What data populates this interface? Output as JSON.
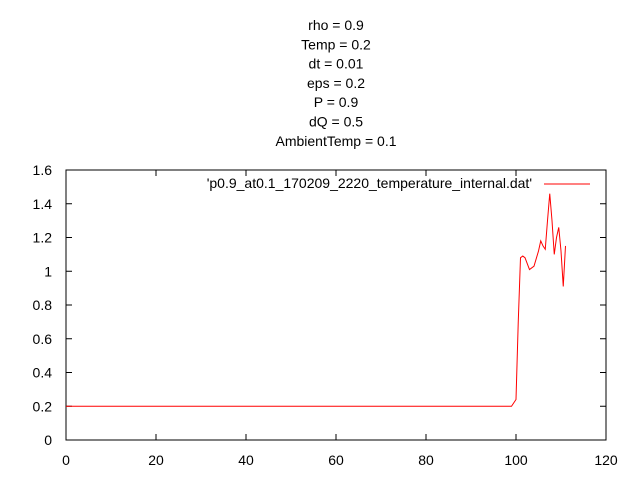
{
  "chart_data": {
    "type": "line",
    "title_lines": [
      "rho = 0.9",
      "Temp = 0.2",
      "dt = 0.01",
      "eps = 0.2",
      "P = 0.9",
      "dQ = 0.5",
      "AmbientTemp = 0.1"
    ],
    "xlim": [
      0,
      120
    ],
    "ylim": [
      0,
      1.6
    ],
    "x_ticks": [
      0,
      20,
      40,
      60,
      80,
      100,
      120
    ],
    "x_tick_labels": [
      "0",
      "20",
      "40",
      "60",
      "80",
      "100",
      "120"
    ],
    "y_ticks": [
      0,
      0.2,
      0.4,
      0.6,
      0.8,
      1.0,
      1.2,
      1.4,
      1.6
    ],
    "y_tick_labels": [
      "0",
      "0.2",
      "0.4",
      "0.6",
      "0.8",
      "1",
      "1.2",
      "1.4",
      "1.6"
    ],
    "grid": false,
    "legend_position": "top-right",
    "series": [
      {
        "name": "'p0.9_at0.1_170209_2220_temperature_internal.dat'",
        "color": "#ff0000",
        "x": [
          0,
          20,
          40,
          60,
          80,
          99,
          100,
          100.5,
          101,
          101.5,
          102,
          103,
          104,
          105,
          105.5,
          106,
          106.5,
          107,
          107.5,
          108,
          108.5,
          109,
          109.5,
          110,
          110.5,
          111
        ],
        "y": [
          0.2,
          0.2,
          0.2,
          0.2,
          0.2,
          0.2,
          0.24,
          0.7,
          1.08,
          1.09,
          1.08,
          1.01,
          1.03,
          1.12,
          1.18,
          1.15,
          1.13,
          1.3,
          1.46,
          1.3,
          1.1,
          1.2,
          1.26,
          1.12,
          0.91,
          1.15
        ]
      }
    ]
  }
}
